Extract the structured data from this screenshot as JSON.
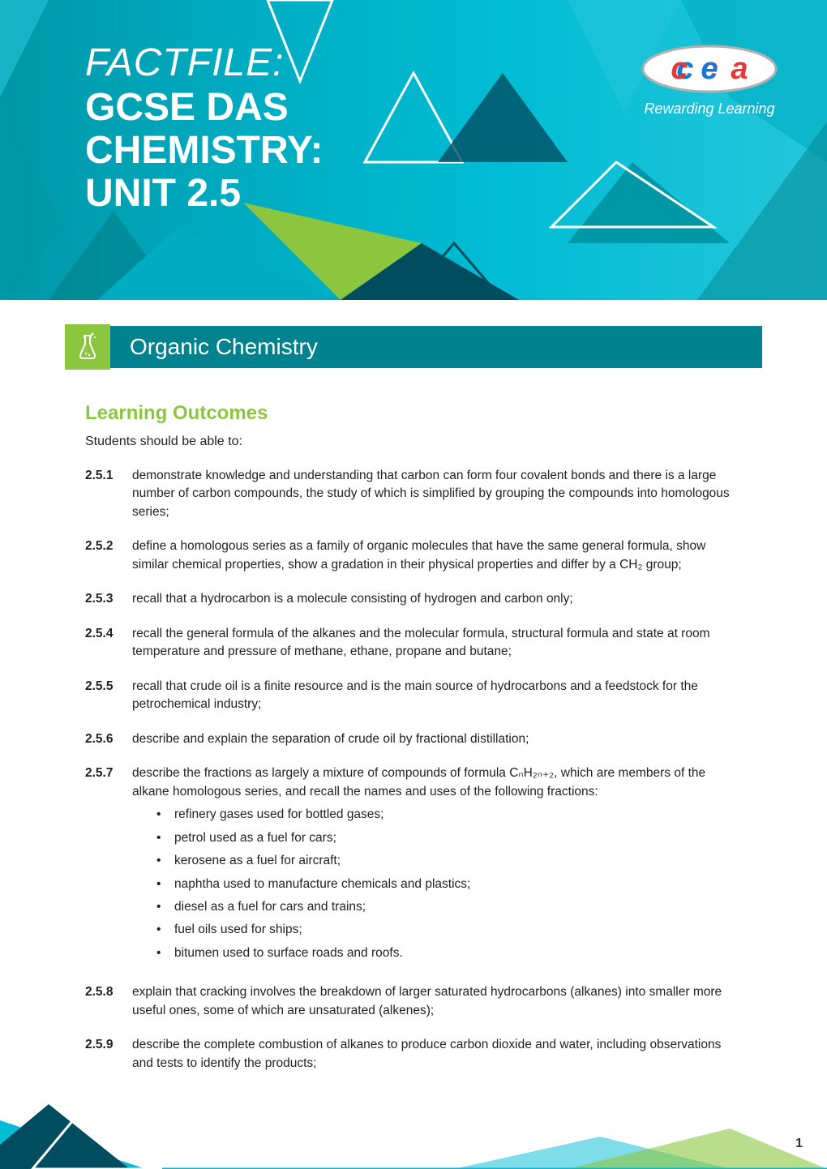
{
  "banner": {
    "factfile": "FACTFILE:",
    "title_lines": [
      "GCSE DAS",
      "CHEMISTRY:",
      "UNIT 2.5"
    ],
    "logo_tag": "Rewarding Learning",
    "colors": {
      "bg_gradient": [
        "#0097a7",
        "#00acc1",
        "#00bcd4",
        "#26c6da"
      ],
      "accent_green": "#8cc63f",
      "dark_teal": "#00838f",
      "navy": "#004d60"
    }
  },
  "section": {
    "title": "Organic Chemistry",
    "iconbox_color": "#8cc63f",
    "bar_color": "#00838f"
  },
  "learning_outcomes": {
    "heading": "Learning Outcomes",
    "heading_color": "#8cc63f",
    "intro": "Students should be able to:",
    "items": [
      {
        "num": "2.5.1",
        "text": "demonstrate knowledge and understanding that carbon can form four covalent bonds and there is a large number of carbon compounds, the study of which is simplified by grouping the compounds into homologous series;"
      },
      {
        "num": "2.5.2",
        "text": "define a homologous series as a family of organic molecules that have the same general formula, show similar chemical properties, show a gradation in their physical properties and differ by a CH₂ group;"
      },
      {
        "num": "2.5.3",
        "text": "recall that a hydrocarbon is a molecule consisting of hydrogen and carbon only;"
      },
      {
        "num": "2.5.4",
        "text": "recall the general formula of the alkanes and the molecular formula, structural formula and state at room temperature and pressure of methane, ethane, propane and butane;"
      },
      {
        "num": "2.5.5",
        "text": "recall that crude oil is a finite resource and is the main source of hydrocarbons and a feedstock for the petrochemical industry;"
      },
      {
        "num": "2.5.6",
        "text": "describe and explain the separation of crude oil by fractional distillation;"
      },
      {
        "num": "2.5.7",
        "text": "describe the fractions as largely a mixture of compounds of formula CₙH₂ₙ₊₂, which are members of the alkane homologous series, and recall the names and uses of the following fractions:",
        "sub": [
          "refinery gases used for bottled gases;",
          "petrol used as a fuel for cars;",
          "kerosene as a fuel for aircraft;",
          "naphtha used to manufacture chemicals and plastics;",
          "diesel as a fuel for cars and trains;",
          "fuel oils used for ships;",
          "bitumen used to surface roads and roofs."
        ]
      },
      {
        "num": "2.5.8",
        "text": "explain that cracking involves the breakdown of larger saturated hydrocarbons (alkanes) into smaller more useful ones, some of which are unsaturated (alkenes);"
      },
      {
        "num": "2.5.9",
        "text": "describe the complete combustion of alkanes to produce carbon dioxide and water, including observations and tests to identify the products;"
      }
    ]
  },
  "page_number": "1",
  "footer_colors": [
    "#004d60",
    "#00bcd4",
    "#8cc63f"
  ]
}
